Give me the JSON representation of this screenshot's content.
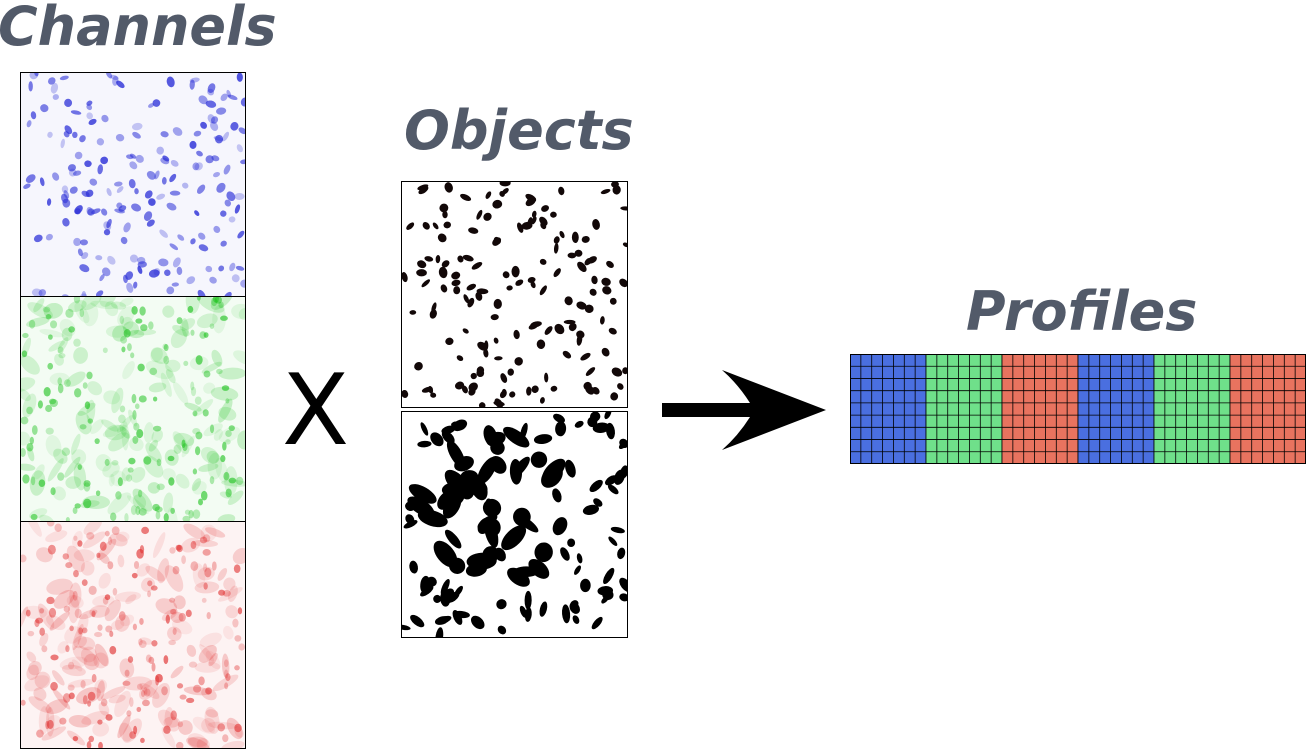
{
  "headings": {
    "channels": "Channels",
    "objects": "Objects",
    "profiles": "Profiles"
  },
  "operator": "X",
  "colors": {
    "heading": "#525a69",
    "blue_channel": "#2f33d8",
    "green_channel": "#1ec21e",
    "red_channel": "#e02a2a",
    "profile_blue": "#4a6fe0",
    "profile_green": "#6fe08a",
    "profile_red": "#e8735f"
  },
  "profile": {
    "segments": [
      "blue",
      "green",
      "red",
      "blue",
      "green",
      "red"
    ],
    "columns_per_segment": 7,
    "rows": 9
  }
}
